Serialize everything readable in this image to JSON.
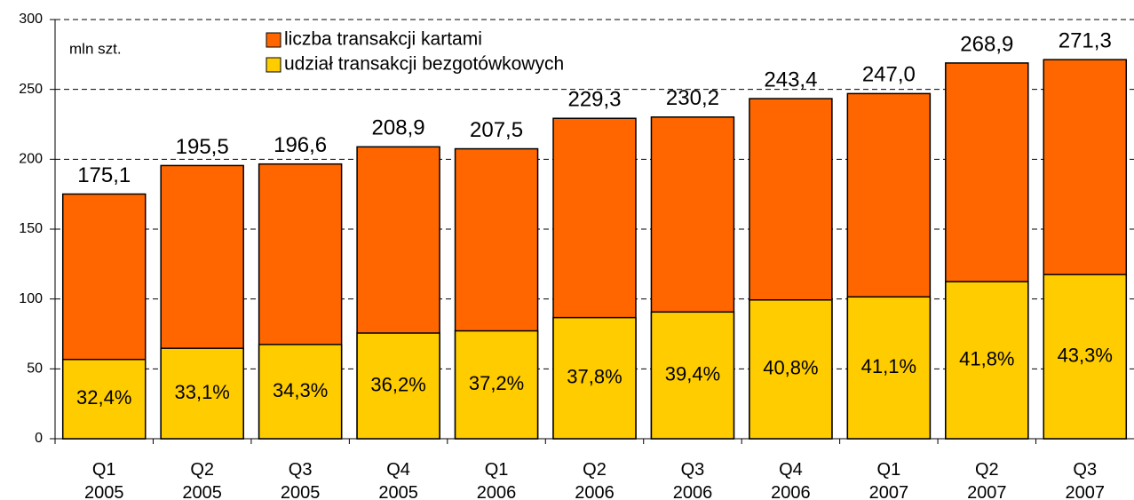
{
  "chart_data": {
    "type": "bar",
    "annotation": "mln szt.",
    "categories": [
      "Q1 2005",
      "Q2 2005",
      "Q3 2005",
      "Q4 2005",
      "Q1 2006",
      "Q2 2006",
      "Q3 2006",
      "Q4 2006",
      "Q1 2007",
      "Q2 2007",
      "Q3 2007"
    ],
    "series": [
      {
        "name": "liczba transakcji kartami",
        "color": "#ff6600",
        "values": [
          175.1,
          195.5,
          196.6,
          208.9,
          207.5,
          229.3,
          230.2,
          243.4,
          247.0,
          268.9,
          271.3
        ],
        "value_labels": [
          "175,1",
          "195,5",
          "196,6",
          "208,9",
          "207,5",
          "229,3",
          "230,2",
          "243,4",
          "247,0",
          "268,9",
          "271,3"
        ]
      },
      {
        "name": "udział transakcji bezgotówkowych",
        "color": "#ffcc00",
        "values": [
          32.4,
          33.1,
          34.3,
          36.2,
          37.2,
          37.8,
          39.4,
          40.8,
          41.1,
          41.8,
          43.3
        ],
        "value_labels": [
          "32,4%",
          "33,1%",
          "34,3%",
          "36,2%",
          "37,2%",
          "37,8%",
          "39,4%",
          "40,8%",
          "41,1%",
          "41,8%",
          "43,3%"
        ]
      }
    ],
    "ylim": [
      0,
      300
    ],
    "yticks": [
      0,
      50,
      100,
      150,
      200,
      250,
      300
    ],
    "grid": true,
    "legend": "top"
  }
}
